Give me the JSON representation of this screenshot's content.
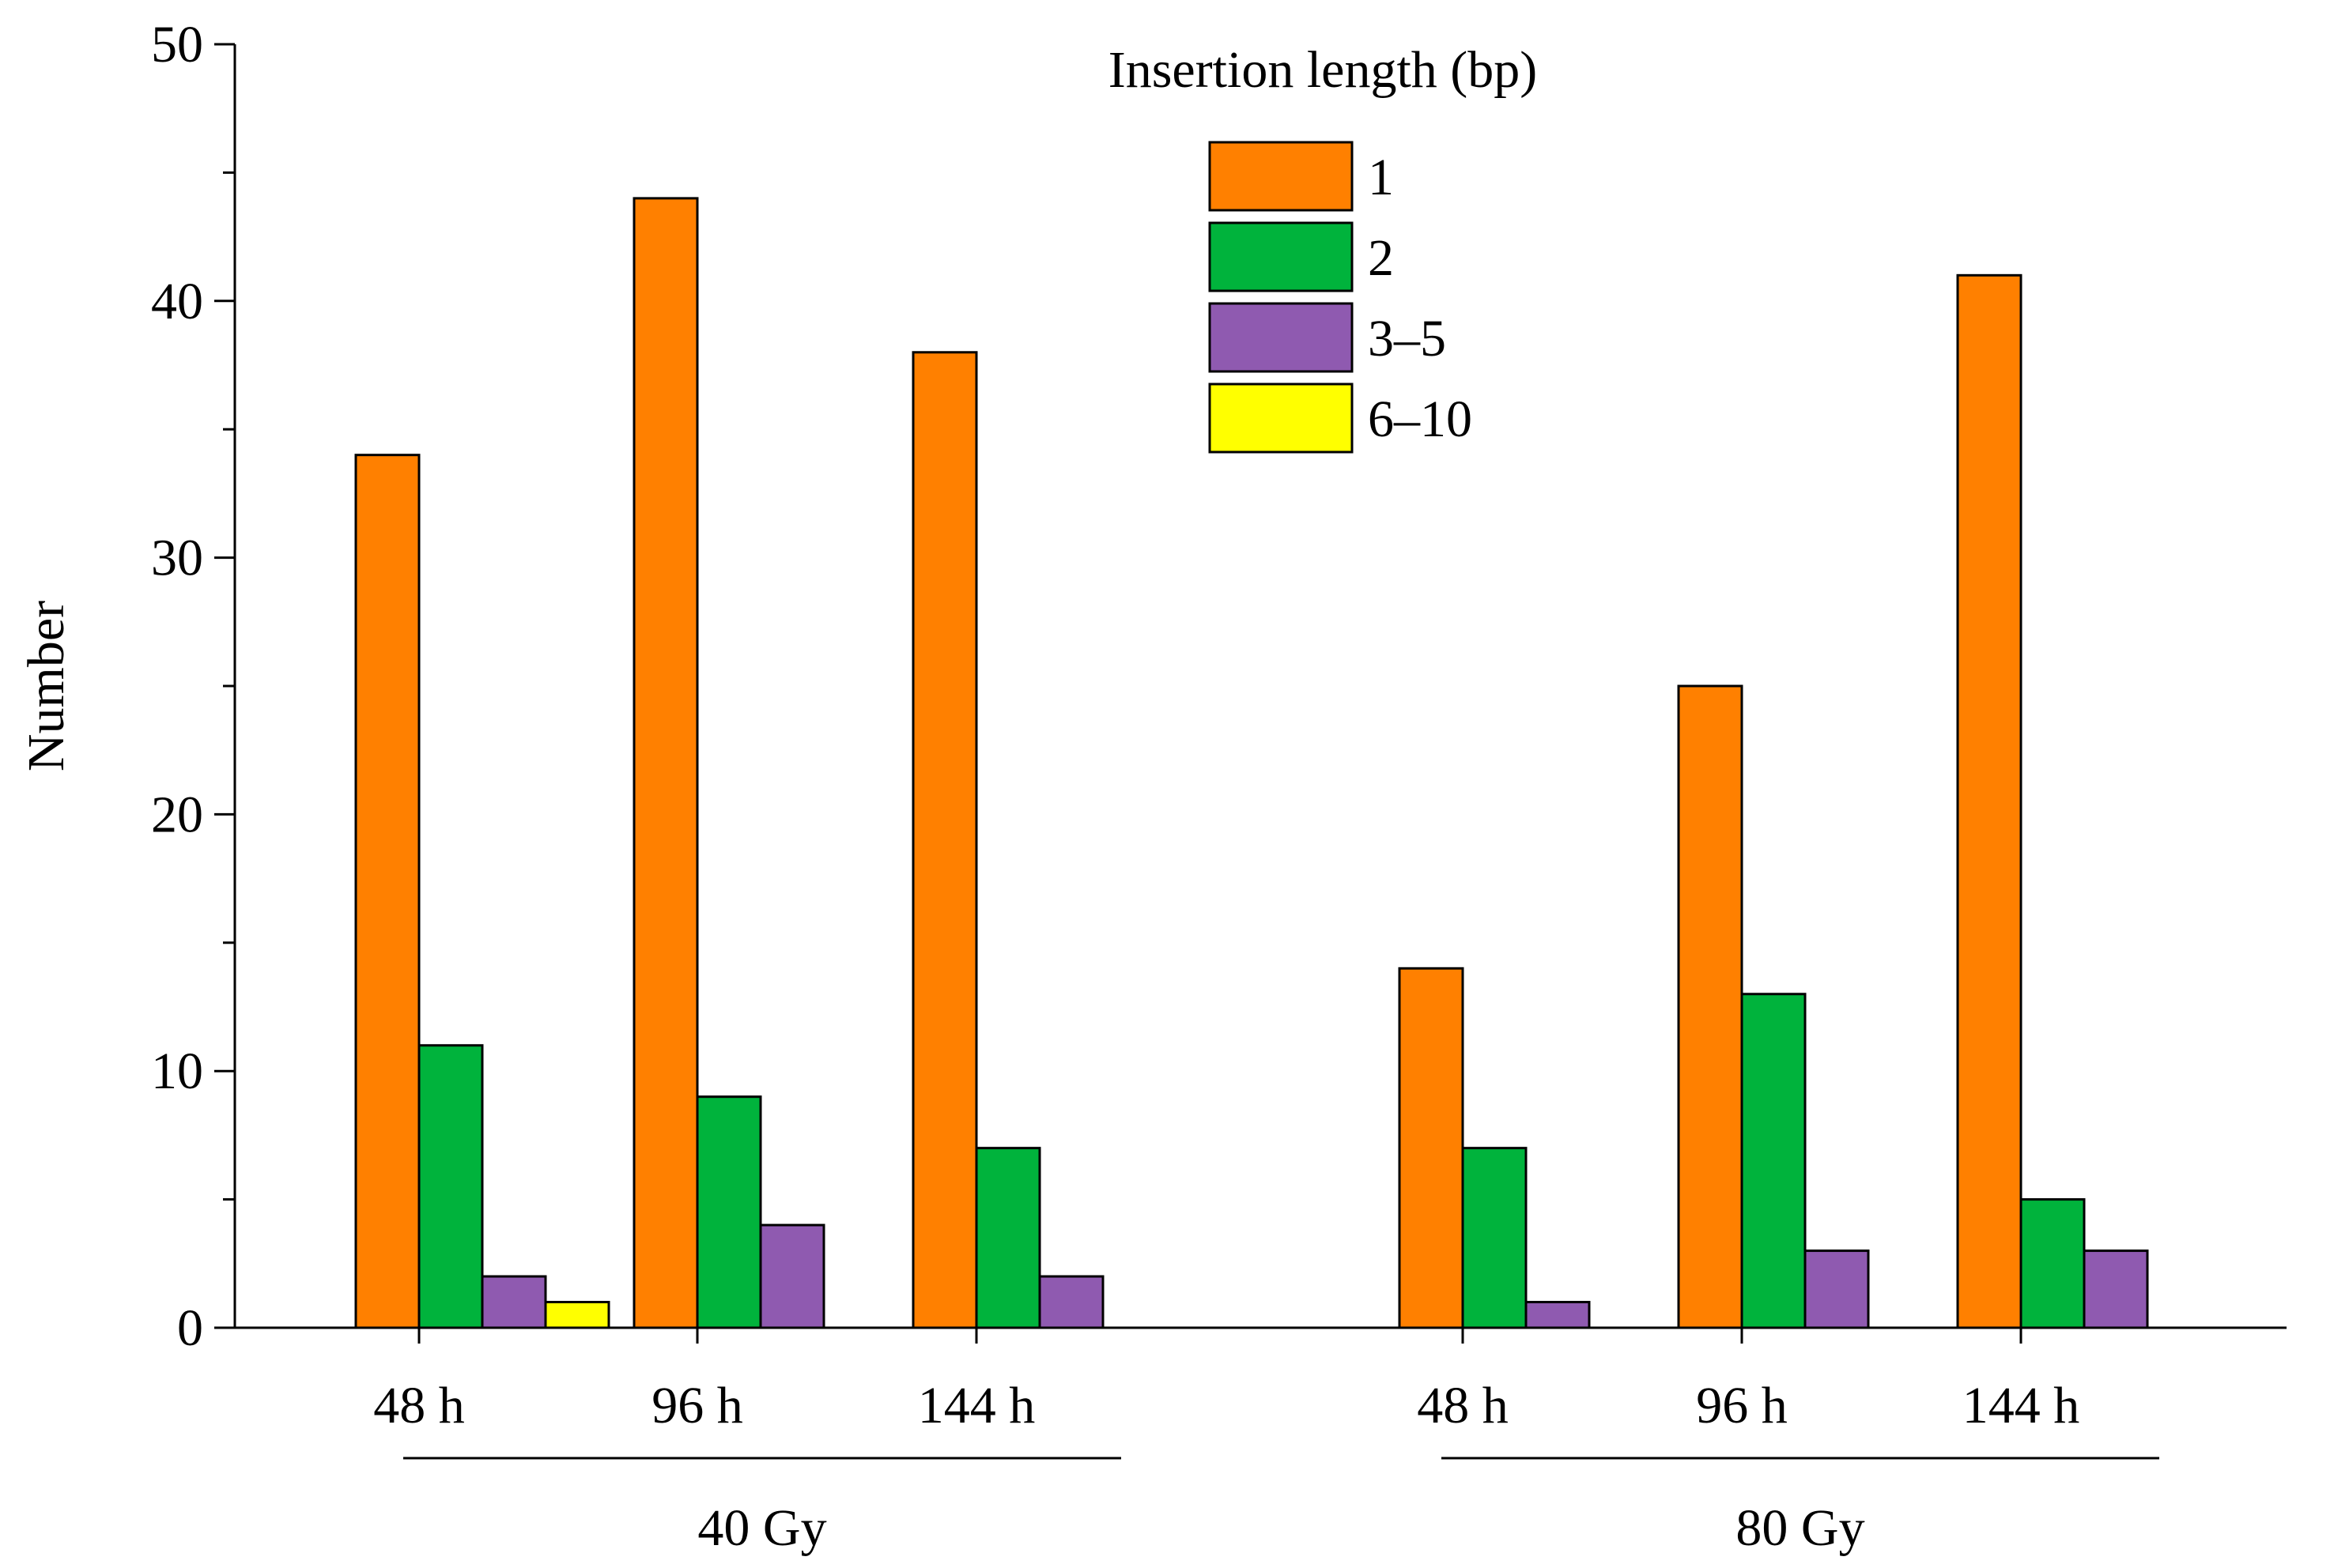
{
  "chart_data": {
    "type": "bar",
    "title": "",
    "xlabel": "",
    "ylabel": "Number",
    "ylim": [
      0,
      50
    ],
    "yticks": [
      "0",
      "10",
      "20",
      "30",
      "40",
      "50"
    ],
    "categories": [
      "48 h",
      "96 h",
      "144 h",
      "48 h",
      "96 h",
      "144 h"
    ],
    "groups": [
      {
        "label": "40 Gy",
        "categories": [
          0,
          1,
          2
        ]
      },
      {
        "label": "80 Gy",
        "categories": [
          3,
          4,
          5
        ]
      }
    ],
    "legend_title": "Insertion length (bp)",
    "legend_position": "top-center",
    "series": [
      {
        "name": "1",
        "color": "#FF8000",
        "values": [
          34,
          44,
          38,
          14,
          25,
          41
        ]
      },
      {
        "name": "2",
        "color": "#00B33C",
        "values": [
          11,
          9,
          7,
          7,
          13,
          5
        ]
      },
      {
        "name": "3–5",
        "color": "#8F5AB0",
        "values": [
          2,
          4,
          2,
          1,
          3,
          3
        ]
      },
      {
        "name": "6–10",
        "color": "#FFFF00",
        "values": [
          1,
          0,
          0,
          0,
          0,
          0
        ]
      }
    ]
  }
}
